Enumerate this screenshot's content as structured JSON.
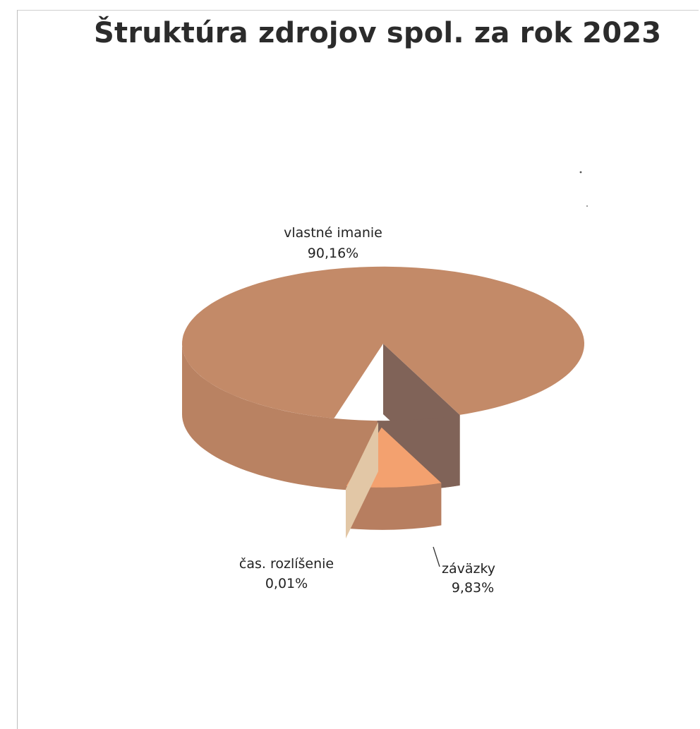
{
  "chart_data": {
    "type": "pie",
    "style": "3d-exploded",
    "title": "Štruktúra  zdrojov spol. za rok 2023",
    "unit": "%",
    "slices": [
      {
        "name": "vlastné imanie",
        "value": 90.16,
        "value_label": "90,16%",
        "color": "#c38a68",
        "side_color": "#806358"
      },
      {
        "name": "záväzky",
        "value": 9.83,
        "value_label": "9,83%",
        "color": "#f3a16f",
        "side_color": "#b77e60"
      },
      {
        "name": "čas. rozlíšenie",
        "value": 0.01,
        "value_label": "0,01%",
        "color": "#e2c7a6",
        "side_color": "#d2b28e"
      }
    ],
    "legend": "none"
  }
}
